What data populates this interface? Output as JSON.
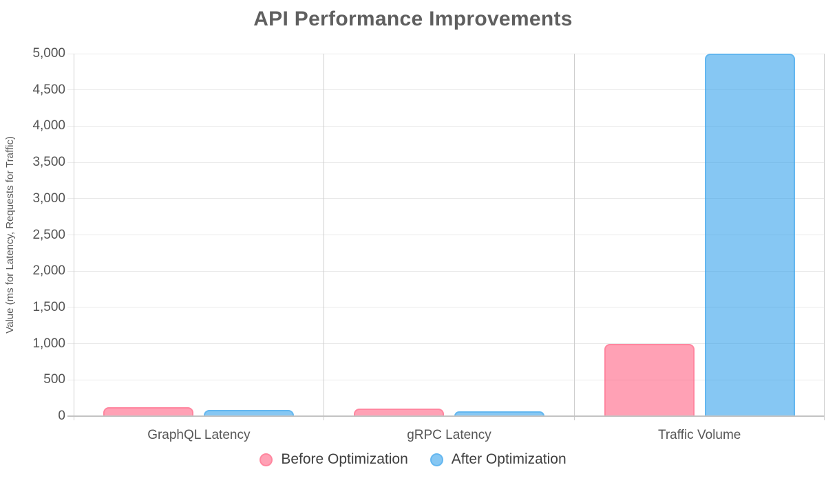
{
  "title": "API Performance Improvements",
  "colors": {
    "before_fill": "rgba(255,99,132,0.6)",
    "before_edge": "rgba(255,99,132,0.42)",
    "after_fill": "rgba(54,162,235,0.6)",
    "after_edge": "rgba(54,162,235,0.42)",
    "h_grid": "#e9e9e9",
    "v_grid": "#cdcdcd",
    "axis_line": "#c3c3c3",
    "tick_text": "#545454",
    "title_text": "#5f5f5f"
  },
  "chart_data": {
    "type": "bar",
    "title": "API Performance Improvements",
    "categories": [
      "GraphQL Latency",
      "gRPC Latency",
      "Traffic Volume"
    ],
    "series": [
      {
        "name": "Before Optimization",
        "color_key": "before",
        "values": [
          120,
          100,
          1000
        ]
      },
      {
        "name": "After Optimization",
        "color_key": "after",
        "values": [
          90,
          70,
          5000
        ]
      }
    ],
    "xlabel": "",
    "ylabel": "Value (ms for Latency, Requests for Traffic)",
    "ylim": [
      0,
      5000
    ],
    "ytick_step": 500,
    "ytick_labels": [
      "0",
      "500",
      "1,000",
      "1,500",
      "2,000",
      "2,500",
      "3,000",
      "3,500",
      "4,000",
      "4,500",
      "5,000"
    ],
    "grid": true,
    "legend_position": "bottom"
  }
}
